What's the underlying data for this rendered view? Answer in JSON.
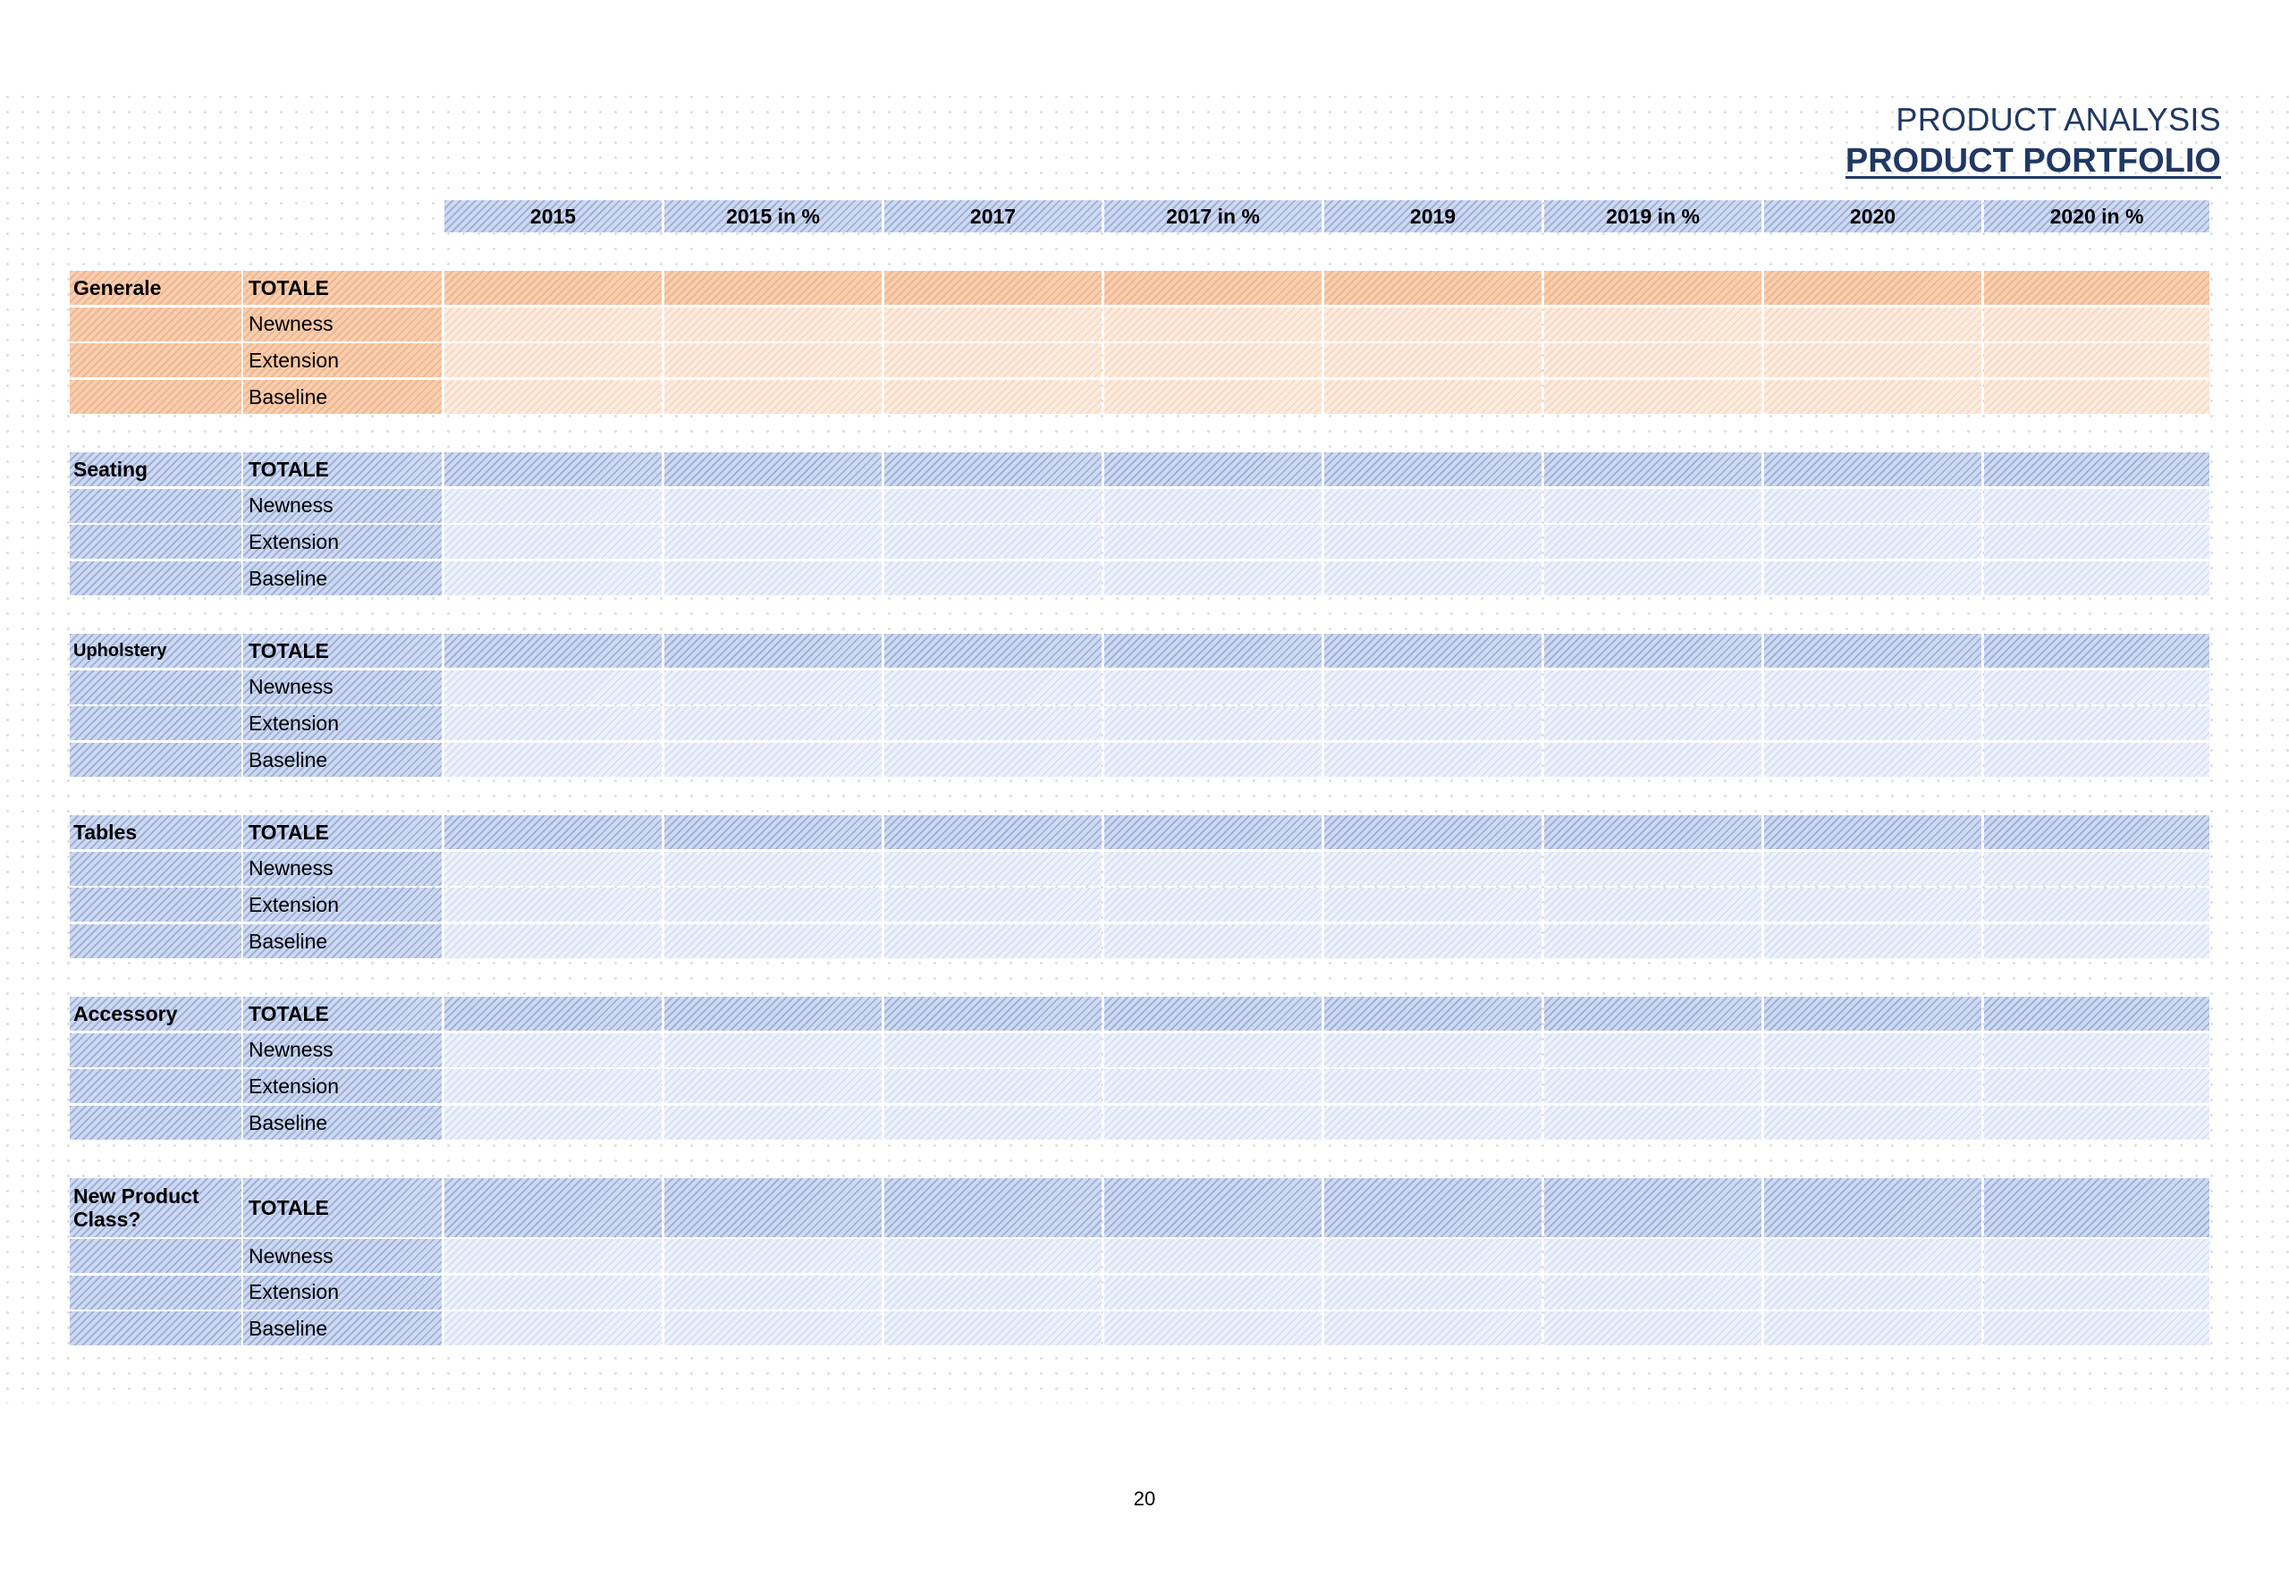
{
  "header": {
    "subtitle": "PRODUCT ANALYSIS",
    "title": "PRODUCT PORTFOLIO"
  },
  "columns": [
    "2015",
    "2015 in %",
    "2017",
    "2017 in %",
    "2019",
    "2019 in %",
    "2020",
    "2020 in %"
  ],
  "row_labels": [
    "TOTALE",
    "Newness",
    "Extension",
    "Baseline"
  ],
  "groups": [
    {
      "name": "Generale",
      "accent": "#f8cfb0"
    },
    {
      "name": "Seating",
      "accent": "#cfdaf0"
    },
    {
      "name": "Upholstery",
      "accent": "#cfdaf0"
    },
    {
      "name": "Tables",
      "accent": "#cfdaf0"
    },
    {
      "name": "Accessory",
      "accent": "#cfdaf0"
    },
    {
      "name": "New Product Class?",
      "accent": "#cfdaf0"
    }
  ],
  "colors": {
    "title": "#1f3864",
    "blue_fill": "#cfdaf0",
    "orange_fill": "#f8cfb0"
  },
  "footer": {
    "page_number": "20"
  }
}
